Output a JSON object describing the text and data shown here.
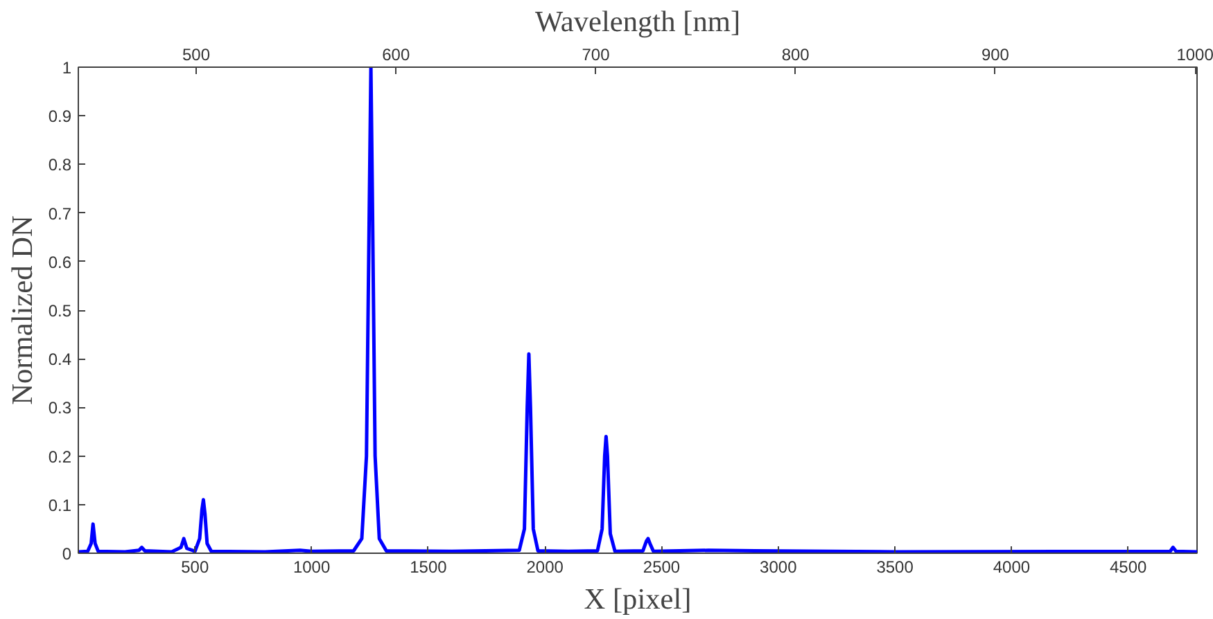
{
  "chart_data": {
    "type": "line",
    "xlabel": "X [pixel]",
    "ylabel": "Normalized DN",
    "x2label": "Wavelength [nm]",
    "xlim": [
      0,
      4795
    ],
    "xticks": [
      500,
      1000,
      1500,
      2000,
      2500,
      3000,
      3500,
      4000,
      4500
    ],
    "x2lim": [
      441,
      1001
    ],
    "x2ticks": [
      500,
      600,
      700,
      800,
      900,
      1000
    ],
    "ylim": [
      0,
      1
    ],
    "yticks": [
      0,
      0.1,
      0.2,
      0.3,
      0.4,
      0.5,
      0.6,
      0.7,
      0.8,
      0.9,
      1
    ],
    "series": [
      {
        "color": "#0000ff",
        "x": [
          0,
          40,
          55,
          63,
          72,
          85,
          200,
          260,
          272,
          285,
          400,
          440,
          452,
          465,
          500,
          520,
          530,
          536,
          543,
          552,
          570,
          800,
          950,
          1000,
          1180,
          1215,
          1235,
          1248,
          1254,
          1260,
          1272,
          1290,
          1320,
          1600,
          1890,
          1912,
          1924,
          1931,
          1938,
          1950,
          1970,
          2100,
          2225,
          2245,
          2256,
          2262,
          2268,
          2280,
          2300,
          2420,
          2435,
          2442,
          2450,
          2465,
          2700,
          2900,
          3500,
          4680,
          4692,
          4705,
          4795
        ],
        "values": [
          0.003,
          0.004,
          0.02,
          0.06,
          0.02,
          0.004,
          0.003,
          0.006,
          0.012,
          0.005,
          0.003,
          0.012,
          0.03,
          0.01,
          0.004,
          0.03,
          0.09,
          0.11,
          0.08,
          0.02,
          0.004,
          0.003,
          0.006,
          0.004,
          0.005,
          0.03,
          0.2,
          0.75,
          1.0,
          0.75,
          0.2,
          0.03,
          0.005,
          0.004,
          0.006,
          0.05,
          0.3,
          0.41,
          0.3,
          0.05,
          0.005,
          0.004,
          0.005,
          0.05,
          0.2,
          0.24,
          0.2,
          0.04,
          0.004,
          0.005,
          0.025,
          0.03,
          0.02,
          0.004,
          0.006,
          0.005,
          0.003,
          0.004,
          0.012,
          0.004,
          0.003
        ]
      }
    ]
  }
}
